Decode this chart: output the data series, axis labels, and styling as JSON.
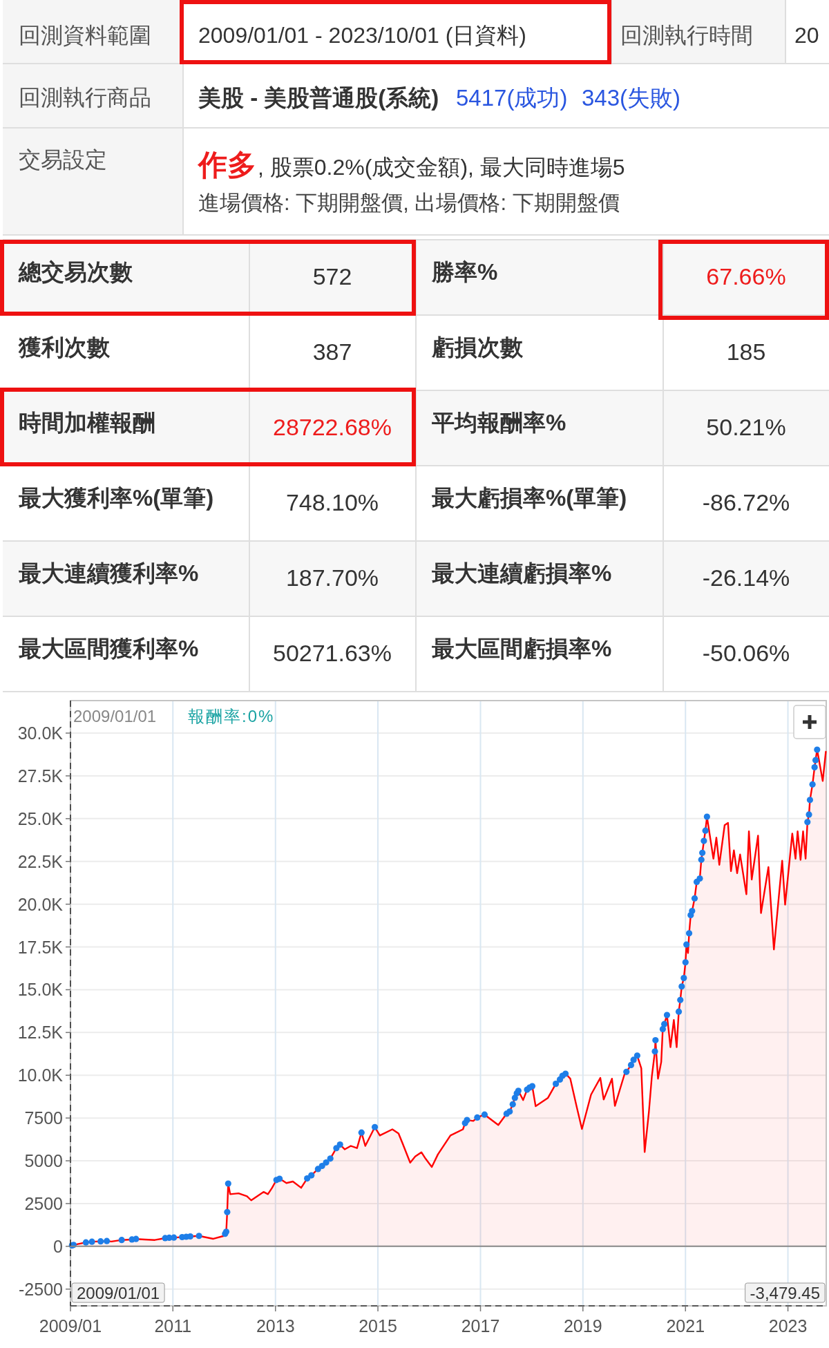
{
  "chart_data": [
    {
      "type": "other",
      "annotations": [
        "回測資料範圍",
        "2009/01/01 - 2023/10/01 (日資料)",
        "回測執行時間",
        "20",
        "回測執行商品",
        "美股 - 美股普通股(系統)",
        "5417(成功)",
        "343(失敗)",
        "交易設定",
        "作多",
        ", 股票0.2%(成交金額), 最大同時進場5",
        "進場價格: 下期開盤價, 出場價格: 下期開盤價",
        "總交易次數",
        "572",
        "勝率%",
        "67.66%",
        "獲利次數",
        "387",
        "虧損次數",
        "185",
        "時間加權報酬",
        "28722.68%",
        "平均報酬率%",
        "50.21%",
        "最大獲利率%(單筆)",
        "748.10%",
        "最大虧損率%(單筆)",
        "-86.72%",
        "最大連續獲利率%",
        "187.70%",
        "最大連續虧損率%",
        "-26.14%",
        "最大區間獲利率%",
        "50271.63%",
        "最大區間虧損率%",
        "-50.06%"
      ]
    },
    {
      "type": "area",
      "x": [
        "2009-01-01",
        "2009-01-12",
        "2009-01-23",
        "2009-04-21",
        "2009-06-03",
        "2009-08-04",
        "2009-09-17",
        "2009-10-20",
        "2010-01-01",
        "2010-03-15",
        "2010-04-13",
        "2010-06-15",
        "2010-08-25",
        "2010-11-07",
        "2010-12-06",
        "2011-01-08",
        "2011-03-08",
        "2011-04-06",
        "2011-05-05",
        "2011-07-06",
        "2011-10-16",
        "2011-12-30",
        "2012-01-08",
        "2012-01-16",
        "2012-01-23",
        "2012-01-30",
        "2012-02-13",
        "2012-04-13",
        "2012-06-12",
        "2012-07-12",
        "2012-10-09",
        "2012-11-08",
        "2012-12-08",
        "2013-01-08",
        "2013-01-30",
        "2013-02-20",
        "2013-03-20",
        "2013-05-05",
        "2013-07-03",
        "2013-08-15",
        "2013-09-14",
        "2013-10-31",
        "2013-11-29",
        "2013-12-28",
        "2014-01-27",
        "2014-03-11",
        "2014-04-06",
        "2014-05-09",
        "2014-06-22",
        "2014-08-05",
        "2014-09-06",
        "2014-10-03",
        "2014-12-10",
        "2015-01-15",
        "2015-04-14",
        "2015-05-28",
        "2015-06-27",
        "2015-08-19",
        "2015-09-24",
        "2015-11-07",
        "2015-12-06",
        "2016-01-20",
        "2016-03-04",
        "2016-06-01",
        "2016-08-29",
        "2016-09-13",
        "2016-09-27",
        "2016-11-11",
        "2016-12-09",
        "2017-01-30",
        "2017-05-08",
        "2017-07-06",
        "2017-07-28",
        "2017-08-19",
        "2017-09-03",
        "2017-09-17",
        "2017-09-28",
        "2017-11-01",
        "2017-11-29",
        "2017-12-17",
        "2018-01-05",
        "2018-01-29",
        "2018-04-27",
        "2018-06-22",
        "2018-07-21",
        "2018-08-08",
        "2018-08-30",
        "2018-10-03",
        "2018-11-16",
        "2018-12-25",
        "2019-02-28",
        "2019-05-05",
        "2019-05-29",
        "2019-07-27",
        "2019-08-17",
        "2019-10-24",
        "2019-11-07",
        "2019-12-10",
        "2019-12-28",
        "2020-01-23",
        "2020-02-21",
        "2020-03-16",
        "2020-04-15",
        "2020-05-06",
        "2020-05-28",
        "2020-06-01",
        "2020-06-19",
        "2020-07-12",
        "2020-07-23",
        "2020-08-03",
        "2020-08-22",
        "2020-09-16",
        "2020-10-10",
        "2020-10-30",
        "2020-11-14",
        "2020-11-25",
        "2020-12-05",
        "2020-12-20",
        "2021-01-01",
        "2021-01-08",
        "2021-01-19",
        "2021-01-27",
        "2021-02-07",
        "2021-02-17",
        "2021-03-07",
        "2021-03-22",
        "2021-04-13",
        "2021-04-24",
        "2021-05-01",
        "2021-05-12",
        "2021-05-23",
        "2021-06-03",
        "2021-07-19",
        "2021-08-09",
        "2021-08-30",
        "2021-10-07",
        "2021-10-31",
        "2021-11-21",
        "2021-12-12",
        "2022-01-04",
        "2022-01-25",
        "2022-03-11",
        "2022-03-29",
        "2022-04-18",
        "2022-06-02",
        "2022-06-23",
        "2022-08-15",
        "2022-09-23",
        "2022-11-21",
        "2022-12-12",
        "2023-02-01",
        "2023-02-24",
        "2023-03-11",
        "2023-04-01",
        "2023-04-19",
        "2023-05-07",
        "2023-05-20",
        "2023-05-31",
        "2023-06-07",
        "2023-06-25",
        "2023-07-10",
        "2023-07-17",
        "2023-07-28",
        "2023-09-06",
        "2023-09-28"
      ],
      "series": [
        {
          "type": "area",
          "color": "#ff0000",
          "values": [
            0,
            50,
            80,
            230,
            270,
            290,
            310,
            280,
            370,
            400,
            430,
            400,
            370,
            480,
            500,
            510,
            540,
            560,
            580,
            610,
            440,
            610,
            730,
            850,
            2000,
            3670,
            3050,
            3100,
            2930,
            2690,
            3180,
            3050,
            3420,
            3880,
            3950,
            3850,
            3700,
            3790,
            3420,
            3970,
            4150,
            4520,
            4700,
            4900,
            5130,
            5740,
            5950,
            5670,
            5870,
            5740,
            6650,
            5870,
            6970,
            6480,
            6840,
            6600,
            5990,
            4890,
            5250,
            5500,
            5130,
            4640,
            5380,
            6480,
            6840,
            7200,
            7380,
            7330,
            7530,
            7700,
            7090,
            7750,
            7880,
            8300,
            8680,
            8950,
            9090,
            8550,
            9160,
            9280,
            9360,
            8190,
            8680,
            9500,
            9750,
            9970,
            10090,
            9800,
            8210,
            6860,
            8870,
            9850,
            8580,
            9800,
            8210,
            10050,
            10200,
            10600,
            10900,
            11150,
            10410,
            5510,
            7840,
            9920,
            11390,
            12050,
            9800,
            10780,
            12700,
            12990,
            13520,
            11640,
            13230,
            11640,
            13720,
            14400,
            15190,
            15680,
            16600,
            17640,
            17150,
            18300,
            19360,
            19600,
            20340,
            21300,
            21500,
            22600,
            23000,
            23700,
            24300,
            25110,
            22660,
            23890,
            22300,
            24620,
            24750,
            21930,
            23150,
            21810,
            22910,
            20580,
            24260,
            21440,
            24010,
            19480,
            22170,
            17350,
            22540,
            19970,
            24130,
            22660,
            24260,
            22590,
            24260,
            22660,
            24800,
            25240,
            26090,
            27000,
            28000,
            28420,
            29030,
            27200,
            28910
          ]
        },
        {
          "type": "scatter",
          "color": "#1e7ee8",
          "marker": "circle",
          "x": [
            "2009-01-12",
            "2009-01-23",
            "2009-04-21",
            "2009-06-03",
            "2009-08-04",
            "2009-09-17",
            "2010-01-01",
            "2010-03-15",
            "2010-04-13",
            "2010-11-07",
            "2010-12-06",
            "2011-01-08",
            "2011-03-08",
            "2011-04-06",
            "2011-05-05",
            "2011-07-06",
            "2012-01-08",
            "2012-01-16",
            "2012-01-23",
            "2012-01-30",
            "2013-01-08",
            "2013-01-30",
            "2013-08-15",
            "2013-09-14",
            "2013-10-31",
            "2013-11-29",
            "2013-12-28",
            "2014-01-27",
            "2014-03-11",
            "2014-04-06",
            "2014-09-06",
            "2014-12-10",
            "2016-09-13",
            "2016-09-27",
            "2016-12-09",
            "2017-01-30",
            "2017-07-06",
            "2017-07-28",
            "2017-08-19",
            "2017-09-03",
            "2017-09-17",
            "2017-09-28",
            "2017-11-29",
            "2017-12-17",
            "2018-01-05",
            "2018-06-22",
            "2018-07-21",
            "2018-08-08",
            "2018-08-30",
            "2019-11-07",
            "2019-12-10",
            "2019-12-28",
            "2020-01-23",
            "2020-05-28",
            "2020-06-01",
            "2020-07-23",
            "2020-08-03",
            "2020-08-22",
            "2020-11-14",
            "2020-11-25",
            "2020-12-05",
            "2020-12-20",
            "2021-01-01",
            "2021-01-08",
            "2021-01-27",
            "2021-02-07",
            "2021-02-17",
            "2021-03-07",
            "2021-03-22",
            "2021-04-13",
            "2021-04-24",
            "2021-05-01",
            "2021-05-12",
            "2021-05-23",
            "2021-06-03",
            "2023-05-20",
            "2023-05-31",
            "2023-06-07",
            "2023-06-25",
            "2023-07-10",
            "2023-07-17",
            "2023-07-28"
          ],
          "values": [
            50,
            80,
            230,
            270,
            290,
            310,
            370,
            400,
            430,
            480,
            500,
            510,
            540,
            560,
            580,
            610,
            730,
            850,
            2000,
            3670,
            3880,
            3950,
            3970,
            4150,
            4520,
            4700,
            4900,
            5130,
            5740,
            5950,
            6650,
            6970,
            7200,
            7380,
            7530,
            7700,
            7750,
            7880,
            8300,
            8680,
            8950,
            9090,
            9160,
            9280,
            9360,
            9500,
            9750,
            9970,
            10090,
            10200,
            10600,
            10900,
            11150,
            11390,
            12050,
            12700,
            12990,
            13520,
            13720,
            14400,
            15190,
            15680,
            16600,
            17640,
            18300,
            19360,
            19600,
            20340,
            21300,
            21500,
            22600,
            23000,
            23700,
            24300,
            25110,
            24800,
            25240,
            26090,
            27000,
            28000,
            28420,
            29030
          ]
        }
      ],
      "xlim": [
        "2009-01-01",
        "2023-10-01"
      ],
      "xticks": [
        {
          "value": "2009-01-01",
          "label": "2009/01"
        },
        {
          "value": "2011-01-01",
          "label": "2011"
        },
        {
          "value": "2013-01-01",
          "label": "2013"
        },
        {
          "value": "2015-01-01",
          "label": "2015"
        },
        {
          "value": "2017-01-01",
          "label": "2017"
        },
        {
          "value": "2019-01-01",
          "label": "2019"
        },
        {
          "value": "2021-01-01",
          "label": "2021"
        },
        {
          "value": "2023-01-01",
          "label": "2023"
        }
      ],
      "ylim": [
        -3479.45,
        31900
      ],
      "yticks": [
        -2500,
        0,
        2500,
        5000,
        7500,
        {
          "value": 10000,
          "label": "10.0K"
        },
        {
          "value": 12500,
          "label": "12.5K"
        },
        {
          "value": 15000,
          "label": "15.0K"
        },
        {
          "value": 17500,
          "label": "17.5K"
        },
        {
          "value": 20000,
          "label": "20.0K"
        },
        {
          "value": 22500,
          "label": "22.5K"
        },
        {
          "value": 25000,
          "label": "25.0K"
        },
        {
          "value": 27500,
          "label": "27.5K"
        },
        {
          "value": 30000,
          "label": "30.0K"
        }
      ],
      "grid": true,
      "ref_lines": [
        {
          "axis": "y",
          "value": 0,
          "color": "#888888"
        },
        {
          "axis": "x",
          "value": "2009-01-01",
          "label": "2009/01/01",
          "line_style": "dashed",
          "color": "#333333"
        },
        {
          "axis": "y",
          "value": -3479.45,
          "label": "-3,479.45",
          "line_style": "dashed",
          "color": "#333333"
        }
      ],
      "annotations": [
        "2009/01/01",
        "報酬率:0%"
      ]
    }
  ]
}
